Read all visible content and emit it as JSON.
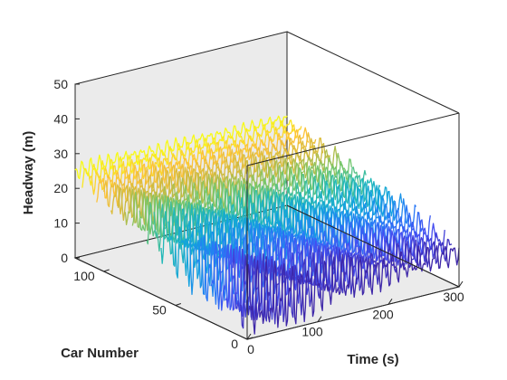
{
  "chart_data": {
    "type": "line",
    "style": "3d-waterfall",
    "colormap": "parula",
    "xlabel": "Time (s)",
    "ylabel": "Car Number",
    "zlabel": "Headway (m)",
    "xlim": [
      0,
      300
    ],
    "ylim": [
      0,
      120
    ],
    "zlim": [
      0,
      50
    ],
    "xticks": [
      "0",
      "100",
      "200",
      "300"
    ],
    "yticks": [
      "0",
      "50",
      "100"
    ],
    "zticks": [
      "0",
      "10",
      "20",
      "30",
      "40",
      "50"
    ],
    "grid": false,
    "series_model": {
      "car_numbers": [
        0,
        5,
        10,
        15,
        20,
        25,
        30,
        35,
        40,
        45,
        50,
        55,
        60,
        65,
        70,
        75,
        80,
        85,
        90,
        95,
        100,
        105,
        110,
        115,
        120
      ],
      "time_start": 0,
      "time_end": 300,
      "baseline_headway_start": 10,
      "baseline_headway_end": 25,
      "oscillation_amplitude_start": 14,
      "oscillation_amplitude_end": 3,
      "oscillation_period": 12
    }
  }
}
